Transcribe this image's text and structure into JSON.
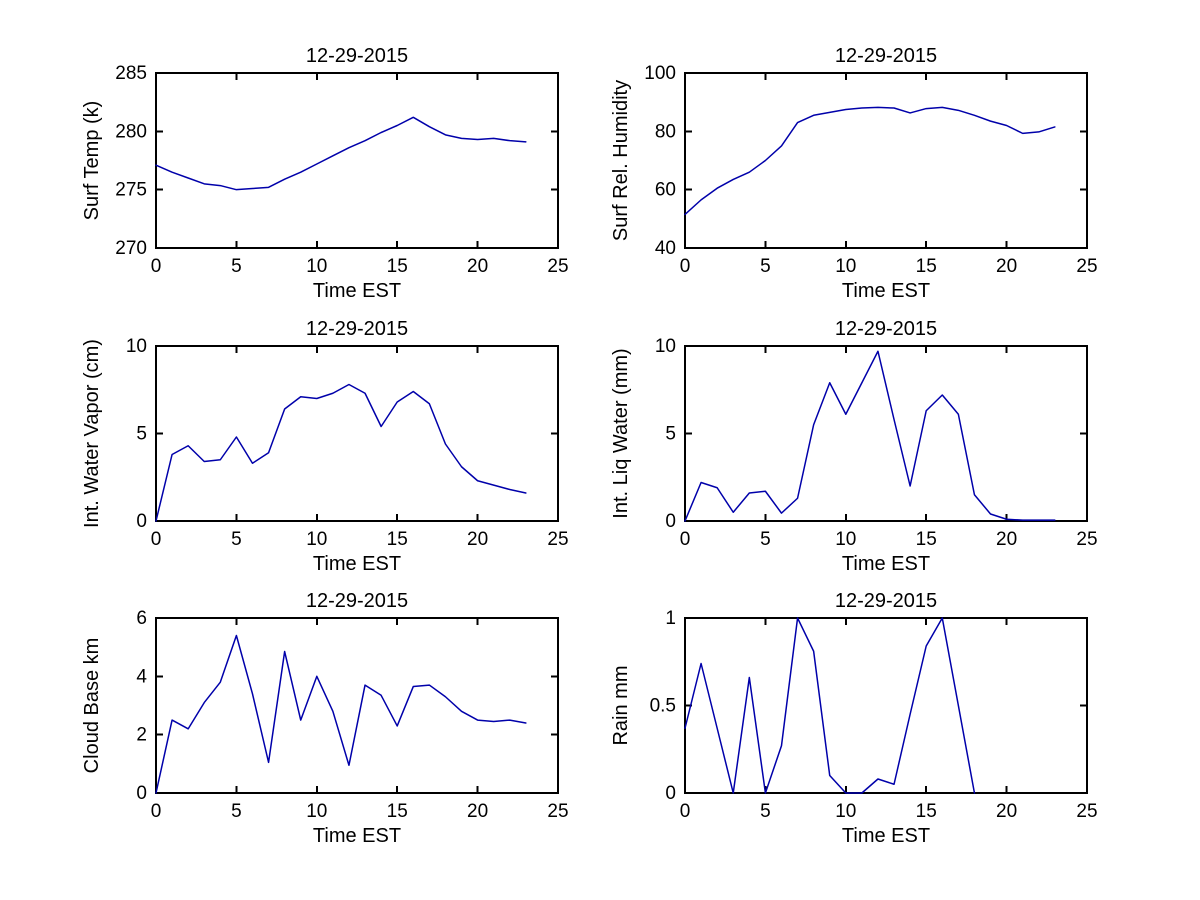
{
  "figure": {
    "background": "#ffffff",
    "axis_color": "#000000",
    "line_color": "#0000AA"
  },
  "chart_data": [
    {
      "id": "surf-temp",
      "type": "line",
      "title": "12-29-2015",
      "xlabel": "Time EST",
      "ylabel": "Surf Temp (k)",
      "line_color": "#0000AA",
      "grid": false,
      "legend": null,
      "xlim": [
        0,
        25
      ],
      "ylim": [
        270,
        285
      ],
      "xticks": [
        0,
        5,
        10,
        15,
        20,
        25
      ],
      "yticks": [
        270,
        275,
        280,
        285
      ],
      "x": [
        0,
        1,
        2,
        3,
        4,
        5,
        6,
        7,
        8,
        9,
        10,
        11,
        12,
        13,
        14,
        15,
        16,
        17,
        18,
        19,
        20,
        21,
        22,
        23
      ],
      "y": [
        277.1,
        276.5,
        276.0,
        275.5,
        275.35,
        275.0,
        275.1,
        275.2,
        275.9,
        276.5,
        277.2,
        277.9,
        278.6,
        279.2,
        279.9,
        280.5,
        281.2,
        280.4,
        279.7,
        279.4,
        279.3,
        279.4,
        279.2,
        279.1
      ]
    },
    {
      "id": "surf-rel-humidity",
      "type": "line",
      "title": "12-29-2015",
      "xlabel": "Time EST",
      "ylabel": "Surf Rel. Humidity",
      "line_color": "#0000AA",
      "grid": false,
      "legend": null,
      "xlim": [
        0,
        25
      ],
      "ylim": [
        40,
        100
      ],
      "xticks": [
        0,
        5,
        10,
        15,
        20,
        25
      ],
      "yticks": [
        40,
        60,
        80,
        100
      ],
      "x": [
        0,
        1,
        2,
        3,
        4,
        5,
        6,
        7,
        8,
        9,
        10,
        11,
        12,
        13,
        14,
        15,
        16,
        17,
        18,
        19,
        20,
        21,
        22,
        23
      ],
      "y": [
        51.5,
        56.5,
        60.5,
        63.5,
        66,
        70,
        75,
        83,
        85.5,
        86.5,
        87.5,
        88,
        88.2,
        88,
        86.3,
        87.8,
        88.2,
        87.2,
        85.5,
        83.5,
        82,
        79.3,
        79.8,
        81.5
      ]
    },
    {
      "id": "int-water-vapor",
      "type": "line",
      "title": "12-29-2015",
      "xlabel": "Time EST",
      "ylabel": "Int. Water Vapor (cm)",
      "line_color": "#0000AA",
      "grid": false,
      "legend": null,
      "xlim": [
        0,
        25
      ],
      "ylim": [
        0,
        10
      ],
      "xticks": [
        0,
        5,
        10,
        15,
        20,
        25
      ],
      "yticks": [
        0,
        5,
        10
      ],
      "x": [
        0,
        1,
        2,
        3,
        4,
        5,
        6,
        7,
        8,
        9,
        10,
        11,
        12,
        13,
        14,
        15,
        16,
        17,
        18,
        19,
        20,
        21,
        22,
        23
      ],
      "y": [
        0,
        3.8,
        4.3,
        3.4,
        3.5,
        4.8,
        3.3,
        3.9,
        6.4,
        7.1,
        7.0,
        7.3,
        7.8,
        7.3,
        5.4,
        6.8,
        7.4,
        6.7,
        4.4,
        3.1,
        2.3,
        2.05,
        1.8,
        1.6
      ]
    },
    {
      "id": "int-liq-water",
      "type": "line",
      "title": "12-29-2015",
      "xlabel": "Time EST",
      "ylabel": "Int. Liq Water (mm)",
      "line_color": "#0000AA",
      "grid": false,
      "legend": null,
      "xlim": [
        0,
        25
      ],
      "ylim": [
        0,
        10
      ],
      "xticks": [
        0,
        5,
        10,
        15,
        20,
        25
      ],
      "yticks": [
        0,
        5,
        10
      ],
      "x": [
        0,
        1,
        2,
        3,
        4,
        5,
        6,
        7,
        8,
        9,
        10,
        11,
        12,
        13,
        14,
        15,
        16,
        17,
        18,
        19,
        20,
        21,
        22,
        23
      ],
      "y": [
        0,
        2.2,
        1.9,
        0.5,
        1.6,
        1.7,
        0.45,
        1.3,
        5.5,
        7.9,
        6.1,
        7.9,
        9.7,
        5.8,
        2.0,
        6.3,
        7.2,
        6.1,
        1.5,
        0.4,
        0.1,
        0.05,
        0.05,
        0.05
      ]
    },
    {
      "id": "cloud-base",
      "type": "line",
      "title": "12-29-2015",
      "xlabel": "Time EST",
      "ylabel": "Cloud Base km",
      "line_color": "#0000AA",
      "grid": false,
      "legend": null,
      "xlim": [
        0,
        25
      ],
      "ylim": [
        0,
        6
      ],
      "xticks": [
        0,
        5,
        10,
        15,
        20,
        25
      ],
      "yticks": [
        0,
        2,
        4,
        6
      ],
      "x": [
        0,
        1,
        2,
        3,
        4,
        5,
        6,
        7,
        8,
        9,
        10,
        11,
        12,
        13,
        14,
        15,
        16,
        17,
        18,
        19,
        20,
        21,
        22,
        23
      ],
      "y": [
        0,
        2.5,
        2.2,
        3.1,
        3.8,
        5.4,
        3.4,
        1.05,
        4.85,
        2.5,
        4.0,
        2.8,
        0.95,
        3.7,
        3.35,
        2.3,
        3.65,
        3.7,
        3.3,
        2.8,
        2.5,
        2.45,
        2.5,
        2.4
      ]
    },
    {
      "id": "rain",
      "type": "line",
      "title": "12-29-2015",
      "xlabel": "Time EST",
      "ylabel": "Rain mm",
      "line_color": "#0000AA",
      "grid": false,
      "legend": null,
      "xlim": [
        0,
        25
      ],
      "ylim": [
        0,
        1
      ],
      "xticks": [
        0,
        5,
        10,
        15,
        20,
        25
      ],
      "yticks": [
        0,
        0.5,
        1
      ],
      "x": [
        0,
        1,
        2,
        3,
        4,
        5,
        6,
        7,
        8,
        9,
        10,
        11,
        12,
        13,
        14,
        15,
        16,
        17,
        18
      ],
      "y": [
        0.37,
        0.74,
        0.37,
        0,
        0.66,
        0,
        0.27,
        1.0,
        0.81,
        0.1,
        0,
        0,
        0.08,
        0.05,
        0.45,
        0.84,
        1.0,
        0.5,
        0
      ]
    }
  ]
}
